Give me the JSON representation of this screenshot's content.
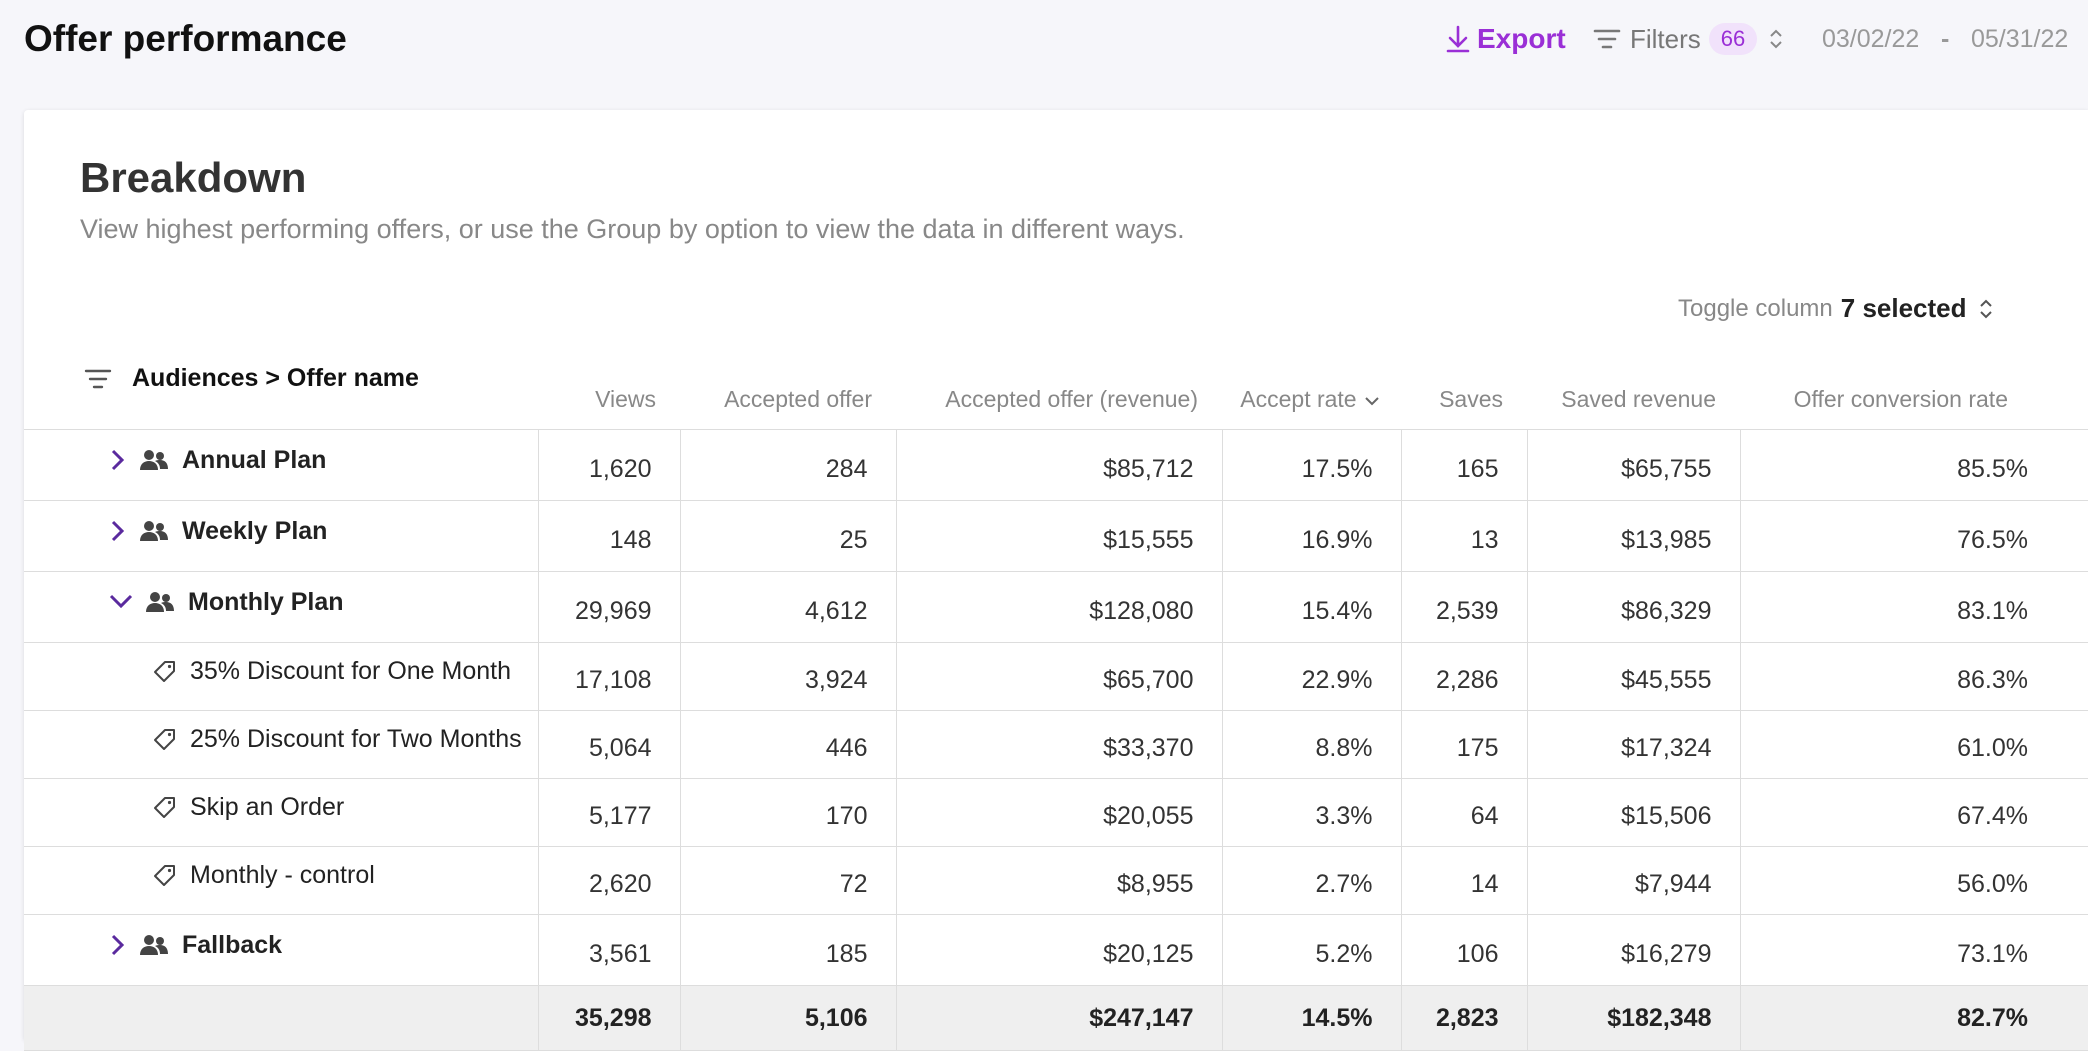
{
  "header": {
    "title": "Offer performance",
    "export": "Export",
    "filters": "Filters",
    "filter_count": "66",
    "date_start": "03/02/22",
    "date_separator": "-",
    "date_end": "05/31/22"
  },
  "breakdown": {
    "title": "Breakdown",
    "subtitle": "View highest performing offers, or use the Group by option to view the data in different ways.",
    "toggle_label": "Toggle column",
    "toggle_value": "7 selected"
  },
  "table": {
    "group_label": "Audiences > Offer name",
    "columns": [
      "Views",
      "Accepted offer",
      "Accepted offer (revenue)",
      "Accept rate",
      "Saves",
      "Saved revenue",
      "Offer conversion rate"
    ],
    "rows": [
      {
        "name": "Annual Plan",
        "cells": [
          "1,620",
          "284",
          "$85,712",
          "17.5%",
          "165",
          "$65,755",
          "85.5%"
        ]
      },
      {
        "name": "Weekly Plan",
        "cells": [
          "148",
          "25",
          "$15,555",
          "16.9%",
          "13",
          "$13,985",
          "76.5%"
        ]
      },
      {
        "name": "Monthly Plan",
        "cells": [
          "29,969",
          "4,612",
          "$128,080",
          "15.4%",
          "2,539",
          "$86,329",
          "83.1%"
        ]
      },
      {
        "name": "35% Discount for One Month",
        "cells": [
          "17,108",
          "3,924",
          "$65,700",
          "22.9%",
          "2,286",
          "$45,555",
          "86.3%"
        ]
      },
      {
        "name": "25% Discount for Two Months",
        "cells": [
          "5,064",
          "446",
          "$33,370",
          "8.8%",
          "175",
          "$17,324",
          "61.0%"
        ]
      },
      {
        "name": "Skip an Order",
        "cells": [
          "5,177",
          "170",
          "$20,055",
          "3.3%",
          "64",
          "$15,506",
          "67.4%"
        ]
      },
      {
        "name": "Monthly - control",
        "cells": [
          "2,620",
          "72",
          "$8,955",
          "2.7%",
          "14",
          "$7,944",
          "56.0%"
        ]
      },
      {
        "name": "Fallback",
        "cells": [
          "3,561",
          "185",
          "$20,125",
          "5.2%",
          "106",
          "$16,279",
          "73.1%"
        ]
      }
    ],
    "total": [
      "35,298",
      "5,106",
      "$247,147",
      "14.5%",
      "2,823",
      "$182,348",
      "82.7%"
    ]
  }
}
